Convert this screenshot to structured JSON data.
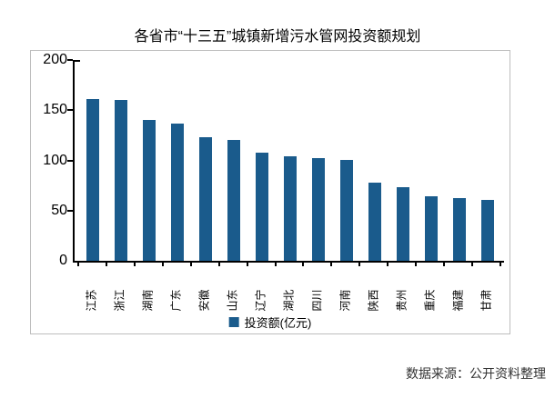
{
  "chart_data": {
    "type": "bar",
    "title": "各省市“十三五”城镇新增污水管网投资额规划",
    "categories": [
      "江苏",
      "浙江",
      "湖南",
      "广东",
      "安徽",
      "山东",
      "辽宁",
      "湖北",
      "四川",
      "河南",
      "陕西",
      "贵州",
      "重庆",
      "福建",
      "甘肃"
    ],
    "values": [
      161,
      160,
      140,
      137,
      123,
      120,
      108,
      104,
      102,
      100,
      78,
      73,
      64,
      62,
      61
    ],
    "series_name": "投资额(亿元)",
    "xlabel": "",
    "ylabel": "",
    "ylim": [
      0,
      200
    ],
    "yticks": [
      0,
      50,
      100,
      150,
      200
    ],
    "grid": false,
    "legend_position": "bottom-center",
    "bar_color": "#1A5B8C"
  },
  "legend": {
    "label": "投资额(亿元)"
  },
  "footer": {
    "source_label": "数据来源：公开资料整理"
  },
  "colors": {
    "bar": "#1A5B8C",
    "axis": "#000000",
    "frame_border": "#BDBDBD",
    "title_text": "#000000",
    "footer_text": "#333333"
  }
}
